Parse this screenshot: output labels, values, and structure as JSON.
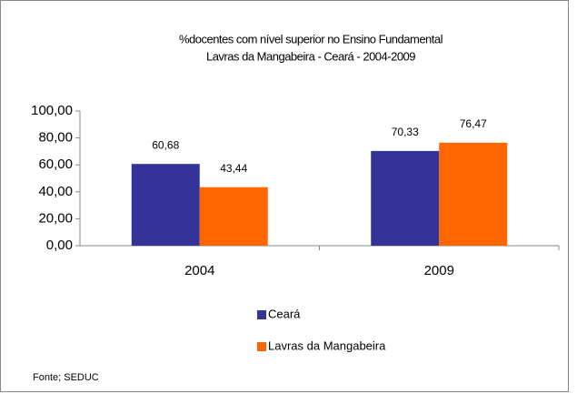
{
  "chart_data": {
    "type": "bar",
    "title": "%docentes com nível superior no Ensino Fundamental",
    "subtitle": "Lavras da Mangabeira - Ceará - 2004-2009",
    "categories": [
      "2004",
      "2009"
    ],
    "series": [
      {
        "name": "Ceará",
        "color": "#333399",
        "values": [
          60.68,
          70.33
        ],
        "value_labels": [
          "60,68",
          "70,33"
        ]
      },
      {
        "name": "Lavras da Mangabeira",
        "color": "#ff6600",
        "values": [
          43.44,
          76.47
        ],
        "value_labels": [
          "43,44",
          "76,47"
        ]
      }
    ],
    "ylim": [
      0,
      100
    ],
    "yticks": [
      {
        "value": 0,
        "label": "0,00"
      },
      {
        "value": 20,
        "label": "20,00"
      },
      {
        "value": 40,
        "label": "40,00"
      },
      {
        "value": 60,
        "label": "60,00"
      },
      {
        "value": 80,
        "label": "80,00"
      },
      {
        "value": 100,
        "label": "100,00"
      }
    ],
    "source": "Fonte; SEDUC"
  }
}
